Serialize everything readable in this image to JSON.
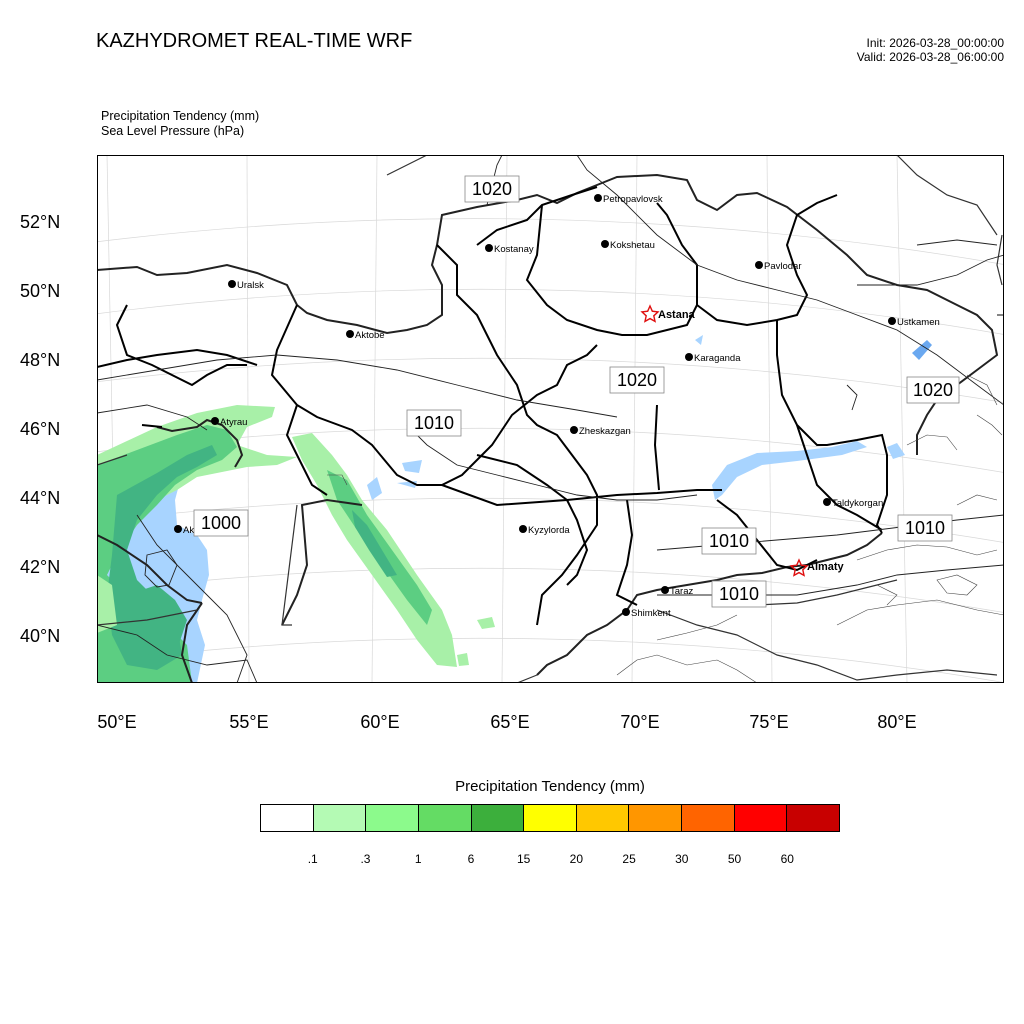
{
  "title": "KAZHYDROMET REAL-TIME WRF",
  "init": "Init: 2026-03-28_00:00:00",
  "valid": "Valid: 2026-03-28_06:00:00",
  "fields": {
    "precip": "Precipitation Tendency   (mm)",
    "slp": "Sea Level Pressure   (hPa)"
  },
  "lat_labels": [
    "52°N",
    "50°N",
    "48°N",
    "46°N",
    "44°N",
    "42°N",
    "40°N"
  ],
  "lon_labels": [
    "50°E",
    "55°E",
    "60°E",
    "65°E",
    "70°E",
    "75°E",
    "80°E"
  ],
  "cities": [
    {
      "name": "Petropavlovsk",
      "capital": false
    },
    {
      "name": "Kostanay",
      "capital": false
    },
    {
      "name": "Kokshetau",
      "capital": false
    },
    {
      "name": "Pavlodar",
      "capital": false
    },
    {
      "name": "Uralsk",
      "capital": false
    },
    {
      "name": "Astana",
      "capital": true
    },
    {
      "name": "Ustkamen",
      "capital": false
    },
    {
      "name": "Aktobe",
      "capital": false
    },
    {
      "name": "Karaganda",
      "capital": false
    },
    {
      "name": "Atyrau",
      "capital": false
    },
    {
      "name": "Zheskazgan",
      "capital": false
    },
    {
      "name": "Taldykorgan",
      "capital": false
    },
    {
      "name": "Aktau",
      "capital": false
    },
    {
      "name": "Kyzylorda",
      "capital": false
    },
    {
      "name": "Almaty",
      "capital": true
    },
    {
      "name": "Taraz",
      "capital": false
    },
    {
      "name": "Shimkent",
      "capital": false
    }
  ],
  "isobar_labels": [
    "1020",
    "1020",
    "1020",
    "1010",
    "1000",
    "1010",
    "1010",
    "1010"
  ],
  "colorbar": {
    "title": "Precipitation Tendency (mm)",
    "ticks": [
      ".1",
      ".3",
      "1",
      "6",
      "15",
      "20",
      "25",
      "30",
      "50",
      "60"
    ],
    "colors": [
      "#ffffff",
      "#b4fab4",
      "#8cfa8c",
      "#64dc64",
      "#3caf3c",
      "#ffff00",
      "#ffc800",
      "#ff9600",
      "#ff6400",
      "#ff0000",
      "#c80000"
    ]
  },
  "map_colors": {
    "water": "#a8d4ff",
    "water_dark": "#6aa8f0",
    "precip_light": "#a8f0a8",
    "precip_mid": "#5cce82",
    "precip_dark": "#42b483",
    "capital_star": "#e01010"
  }
}
